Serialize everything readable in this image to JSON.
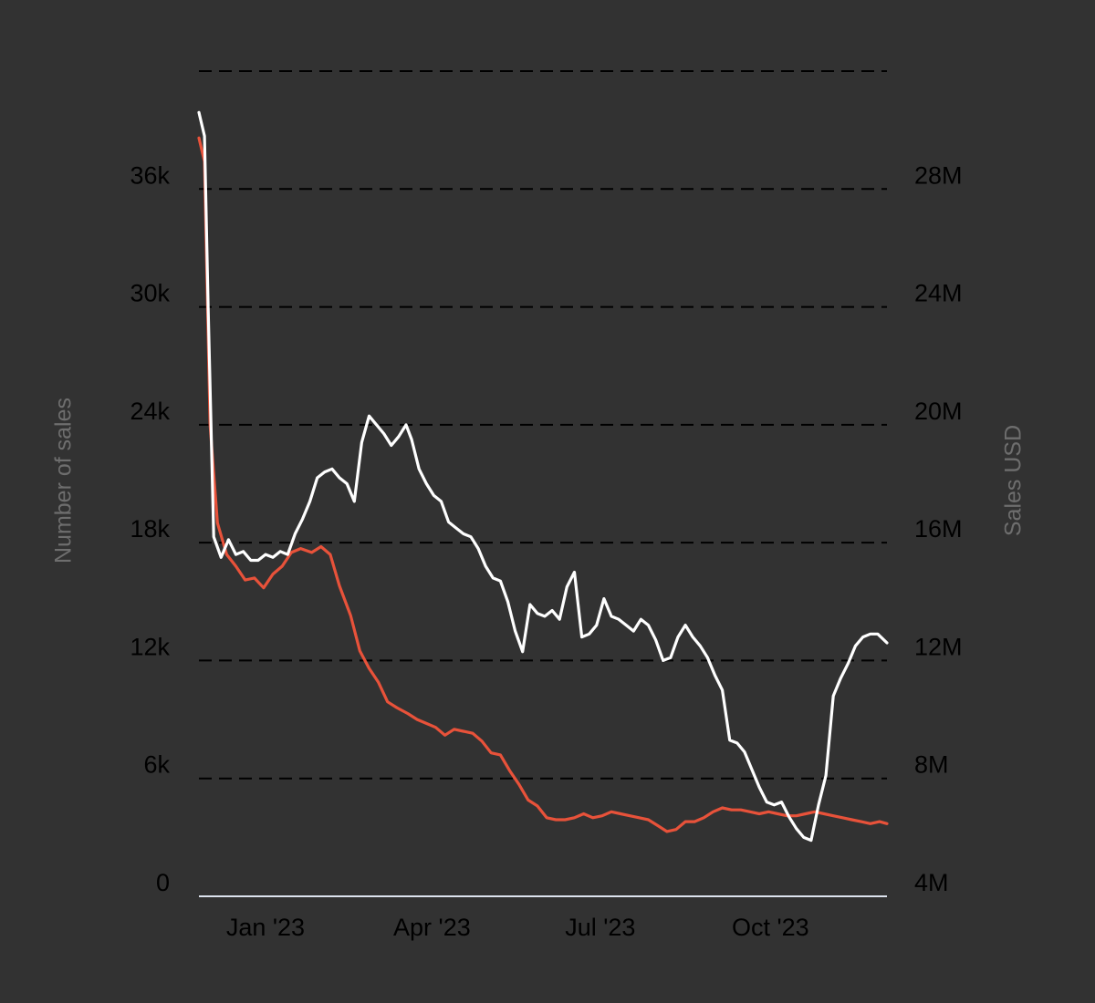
{
  "chart_data": {
    "type": "line",
    "background_color": "#323232",
    "grid": true,
    "legend": "none",
    "y_left": {
      "label": "Number of sales",
      "range": [
        0,
        42000
      ],
      "ticks": [
        {
          "value": 0,
          "label": "0"
        },
        {
          "value": 6000,
          "label": "6k"
        },
        {
          "value": 12000,
          "label": "12k"
        },
        {
          "value": 18000,
          "label": "18k"
        },
        {
          "value": 24000,
          "label": "24k"
        },
        {
          "value": 30000,
          "label": "30k"
        },
        {
          "value": 36000,
          "label": "36k"
        }
      ]
    },
    "y_right": {
      "label": "Sales USD",
      "range": [
        4000000,
        32000000
      ],
      "ticks": [
        {
          "value": 4000000,
          "label": "4M"
        },
        {
          "value": 8000000,
          "label": "8M"
        },
        {
          "value": 12000000,
          "label": "12M"
        },
        {
          "value": 16000000,
          "label": "16M"
        },
        {
          "value": 20000000,
          "label": "20M"
        },
        {
          "value": 24000000,
          "label": "24M"
        },
        {
          "value": 28000000,
          "label": "28M"
        }
      ]
    },
    "x_axis": {
      "range": [
        "2022-11-26",
        "2023-12-03"
      ],
      "ticks": [
        {
          "value": "2023-01-01",
          "label": "Jan '23"
        },
        {
          "value": "2023-04-01",
          "label": "Apr '23"
        },
        {
          "value": "2023-07-01",
          "label": "Jul '23"
        },
        {
          "value": "2023-10-01",
          "label": "Oct '23"
        }
      ]
    },
    "series": [
      {
        "axis": "left",
        "color": "#e8523a",
        "points": [
          [
            "2022-11-26",
            38600
          ],
          [
            "2022-11-29",
            37400
          ],
          [
            "2022-12-02",
            24000
          ],
          [
            "2022-12-06",
            19000
          ],
          [
            "2022-12-11",
            17400
          ],
          [
            "2022-12-16",
            16800
          ],
          [
            "2022-12-21",
            16100
          ],
          [
            "2022-12-26",
            16200
          ],
          [
            "2022-12-31",
            15700
          ],
          [
            "2023-01-05",
            16400
          ],
          [
            "2023-01-10",
            16800
          ],
          [
            "2023-01-15",
            17500
          ],
          [
            "2023-01-20",
            17700
          ],
          [
            "2023-01-26",
            17500
          ],
          [
            "2023-01-31",
            17800
          ],
          [
            "2023-02-05",
            17400
          ],
          [
            "2023-02-10",
            15800
          ],
          [
            "2023-02-16",
            14300
          ],
          [
            "2023-02-21",
            12500
          ],
          [
            "2023-02-26",
            11600
          ],
          [
            "2023-03-03",
            10900
          ],
          [
            "2023-03-08",
            9900
          ],
          [
            "2023-03-13",
            9600
          ],
          [
            "2023-03-19",
            9300
          ],
          [
            "2023-03-24",
            9000
          ],
          [
            "2023-03-29",
            8800
          ],
          [
            "2023-04-03",
            8600
          ],
          [
            "2023-04-08",
            8200
          ],
          [
            "2023-04-13",
            8500
          ],
          [
            "2023-04-18",
            8400
          ],
          [
            "2023-04-23",
            8300
          ],
          [
            "2023-04-28",
            7900
          ],
          [
            "2023-05-03",
            7300
          ],
          [
            "2023-05-08",
            7200
          ],
          [
            "2023-05-13",
            6400
          ],
          [
            "2023-05-18",
            5700
          ],
          [
            "2023-05-23",
            4900
          ],
          [
            "2023-05-28",
            4600
          ],
          [
            "2023-06-02",
            4000
          ],
          [
            "2023-06-07",
            3900
          ],
          [
            "2023-06-12",
            3900
          ],
          [
            "2023-06-17",
            4000
          ],
          [
            "2023-06-22",
            4200
          ],
          [
            "2023-06-27",
            4000
          ],
          [
            "2023-07-02",
            4100
          ],
          [
            "2023-07-07",
            4300
          ],
          [
            "2023-07-12",
            4200
          ],
          [
            "2023-07-17",
            4100
          ],
          [
            "2023-07-22",
            4000
          ],
          [
            "2023-07-27",
            3900
          ],
          [
            "2023-08-01",
            3600
          ],
          [
            "2023-08-06",
            3300
          ],
          [
            "2023-08-11",
            3400
          ],
          [
            "2023-08-16",
            3800
          ],
          [
            "2023-08-21",
            3800
          ],
          [
            "2023-08-26",
            4000
          ],
          [
            "2023-08-31",
            4300
          ],
          [
            "2023-09-05",
            4500
          ],
          [
            "2023-09-10",
            4400
          ],
          [
            "2023-09-15",
            4400
          ],
          [
            "2023-09-20",
            4300
          ],
          [
            "2023-09-25",
            4200
          ],
          [
            "2023-09-30",
            4300
          ],
          [
            "2023-10-05",
            4200
          ],
          [
            "2023-10-10",
            4100
          ],
          [
            "2023-10-15",
            4100
          ],
          [
            "2023-10-20",
            4200
          ],
          [
            "2023-10-25",
            4300
          ],
          [
            "2023-10-30",
            4200
          ],
          [
            "2023-11-04",
            4100
          ],
          [
            "2023-11-09",
            4000
          ],
          [
            "2023-11-14",
            3900
          ],
          [
            "2023-11-19",
            3800
          ],
          [
            "2023-11-24",
            3700
          ],
          [
            "2023-11-29",
            3800
          ],
          [
            "2023-12-03",
            3700
          ]
        ]
      },
      {
        "axis": "right",
        "color": "#ffffff",
        "points": [
          [
            "2022-11-26",
            30600
          ],
          [
            "2022-11-29",
            29800
          ],
          [
            "2022-12-01",
            24000
          ],
          [
            "2022-12-04",
            16200
          ],
          [
            "2022-12-08",
            15500
          ],
          [
            "2022-12-12",
            16100
          ],
          [
            "2022-12-16",
            15600
          ],
          [
            "2022-12-20",
            15700
          ],
          [
            "2022-12-24",
            15400
          ],
          [
            "2022-12-28",
            15400
          ],
          [
            "2023-01-01",
            15600
          ],
          [
            "2023-01-05",
            15500
          ],
          [
            "2023-01-09",
            15700
          ],
          [
            "2023-01-13",
            15600
          ],
          [
            "2023-01-17",
            16300
          ],
          [
            "2023-01-21",
            16800
          ],
          [
            "2023-01-25",
            17400
          ],
          [
            "2023-01-29",
            18200
          ],
          [
            "2023-02-02",
            18400
          ],
          [
            "2023-02-06",
            18500
          ],
          [
            "2023-02-10",
            18200
          ],
          [
            "2023-02-14",
            18000
          ],
          [
            "2023-02-18",
            17400
          ],
          [
            "2023-02-22",
            19400
          ],
          [
            "2023-02-26",
            20300
          ],
          [
            "2023-03-02",
            20000
          ],
          [
            "2023-03-06",
            19700
          ],
          [
            "2023-03-10",
            19300
          ],
          [
            "2023-03-14",
            19600
          ],
          [
            "2023-03-18",
            20000
          ],
          [
            "2023-03-21",
            19500
          ],
          [
            "2023-03-25",
            18500
          ],
          [
            "2023-03-29",
            18000
          ],
          [
            "2023-04-02",
            17600
          ],
          [
            "2023-04-06",
            17400
          ],
          [
            "2023-04-10",
            16700
          ],
          [
            "2023-04-14",
            16500
          ],
          [
            "2023-04-18",
            16300
          ],
          [
            "2023-04-22",
            16200
          ],
          [
            "2023-04-26",
            15800
          ],
          [
            "2023-04-30",
            15200
          ],
          [
            "2023-05-04",
            14800
          ],
          [
            "2023-05-08",
            14700
          ],
          [
            "2023-05-12",
            14000
          ],
          [
            "2023-05-16",
            13000
          ],
          [
            "2023-05-20",
            12300
          ],
          [
            "2023-05-24",
            13900
          ],
          [
            "2023-05-28",
            13600
          ],
          [
            "2023-06-01",
            13500
          ],
          [
            "2023-06-05",
            13700
          ],
          [
            "2023-06-09",
            13400
          ],
          [
            "2023-06-13",
            14500
          ],
          [
            "2023-06-17",
            15000
          ],
          [
            "2023-06-21",
            12800
          ],
          [
            "2023-06-25",
            12900
          ],
          [
            "2023-06-29",
            13200
          ],
          [
            "2023-07-03",
            14100
          ],
          [
            "2023-07-07",
            13500
          ],
          [
            "2023-07-11",
            13400
          ],
          [
            "2023-07-15",
            13200
          ],
          [
            "2023-07-19",
            13000
          ],
          [
            "2023-07-23",
            13400
          ],
          [
            "2023-07-27",
            13200
          ],
          [
            "2023-07-31",
            12700
          ],
          [
            "2023-08-04",
            12000
          ],
          [
            "2023-08-08",
            12100
          ],
          [
            "2023-08-12",
            12800
          ],
          [
            "2023-08-16",
            13200
          ],
          [
            "2023-08-20",
            12800
          ],
          [
            "2023-08-24",
            12500
          ],
          [
            "2023-08-28",
            12100
          ],
          [
            "2023-09-01",
            11500
          ],
          [
            "2023-09-05",
            11000
          ],
          [
            "2023-09-09",
            9300
          ],
          [
            "2023-09-13",
            9200
          ],
          [
            "2023-09-17",
            8900
          ],
          [
            "2023-09-21",
            8300
          ],
          [
            "2023-09-25",
            7700
          ],
          [
            "2023-09-29",
            7200
          ],
          [
            "2023-10-03",
            7100
          ],
          [
            "2023-10-07",
            7200
          ],
          [
            "2023-10-11",
            6700
          ],
          [
            "2023-10-15",
            6300
          ],
          [
            "2023-10-19",
            6000
          ],
          [
            "2023-10-23",
            5900
          ],
          [
            "2023-10-27",
            7100
          ],
          [
            "2023-10-31",
            8100
          ],
          [
            "2023-11-04",
            10800
          ],
          [
            "2023-11-08",
            11400
          ],
          [
            "2023-11-12",
            11900
          ],
          [
            "2023-11-16",
            12500
          ],
          [
            "2023-11-20",
            12800
          ],
          [
            "2023-11-24",
            12900
          ],
          [
            "2023-11-28",
            12900
          ],
          [
            "2023-12-03",
            12600
          ]
        ]
      }
    ]
  }
}
